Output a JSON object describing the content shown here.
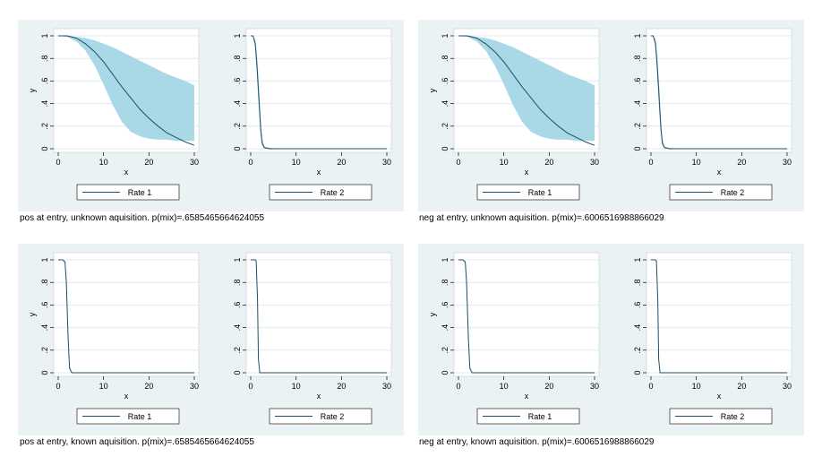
{
  "colors": {
    "panel_bg": "#eaf2f3",
    "plot_bg": "#ffffff",
    "band": "#a9d8e6",
    "line": "#1e4f66",
    "grid": "#e1ebee",
    "frame": "#bcc8cc"
  },
  "chart_data": [
    {
      "caption": "pos at entry, unknown aquisition.  p(mix)=.6585465664624055",
      "subplots": [
        {
          "type": "area",
          "xlabel": "x",
          "ylabel": "y",
          "xlim": [
            0,
            30
          ],
          "ylim": [
            0,
            1
          ],
          "xticks": [
            "0",
            "10",
            "20",
            "30"
          ],
          "yticks": [
            "0",
            ".2",
            ".4",
            ".6",
            ".8",
            "1"
          ],
          "legend": [
            "Rate 1"
          ],
          "x": [
            0,
            2,
            4,
            6,
            8,
            10,
            12,
            14,
            16,
            18,
            20,
            22,
            24,
            26,
            28,
            30
          ],
          "band_lower": [
            1,
            0.99,
            0.95,
            0.87,
            0.74,
            0.57,
            0.39,
            0.24,
            0.15,
            0.11,
            0.09,
            0.08,
            0.08,
            0.07,
            0.07,
            0.07
          ],
          "band_upper": [
            1,
            1,
            0.99,
            0.98,
            0.96,
            0.93,
            0.9,
            0.86,
            0.82,
            0.78,
            0.74,
            0.7,
            0.66,
            0.63,
            0.6,
            0.56
          ],
          "center": [
            1,
            1,
            0.98,
            0.93,
            0.86,
            0.77,
            0.66,
            0.55,
            0.45,
            0.35,
            0.27,
            0.2,
            0.14,
            0.1,
            0.06,
            0.03
          ]
        },
        {
          "type": "area",
          "xlabel": "x",
          "ylabel": "",
          "xlim": [
            0,
            30
          ],
          "ylim": [
            0,
            1
          ],
          "xticks": [
            "0",
            "10",
            "20",
            "30"
          ],
          "yticks": [
            "0",
            ".2",
            ".4",
            ".6",
            ".8",
            "1"
          ],
          "legend": [
            "Rate 2"
          ],
          "x": [
            0,
            0.5,
            1,
            1.4,
            1.8,
            2.2,
            2.5,
            3,
            4,
            6,
            10,
            30
          ],
          "band_lower": [
            1,
            1,
            0.88,
            0.62,
            0.33,
            0.12,
            0.03,
            0,
            0,
            0,
            0,
            0
          ],
          "band_upper": [
            1,
            1,
            0.97,
            0.83,
            0.58,
            0.28,
            0.1,
            0.02,
            0.01,
            0,
            0,
            0
          ],
          "center": [
            1,
            1,
            0.93,
            0.72,
            0.45,
            0.18,
            0.05,
            0.01,
            0,
            0,
            0,
            0
          ]
        }
      ]
    },
    {
      "caption": "neg at entry, unknown aquisition.  p(mix)=.6006516988866029",
      "subplots": [
        {
          "type": "area",
          "xlabel": "x",
          "ylabel": "y",
          "xlim": [
            0,
            30
          ],
          "ylim": [
            0,
            1
          ],
          "xticks": [
            "0",
            "10",
            "20",
            "30"
          ],
          "yticks": [
            "0",
            ".2",
            ".4",
            ".6",
            ".8",
            "1"
          ],
          "legend": [
            "Rate 1"
          ],
          "x": [
            0,
            2,
            4,
            6,
            8,
            10,
            12,
            14,
            16,
            18,
            20,
            22,
            24,
            26,
            28,
            30
          ],
          "band_lower": [
            1,
            0.99,
            0.95,
            0.87,
            0.74,
            0.57,
            0.39,
            0.24,
            0.15,
            0.11,
            0.09,
            0.08,
            0.08,
            0.07,
            0.07,
            0.07
          ],
          "band_upper": [
            1,
            1,
            0.99,
            0.98,
            0.96,
            0.93,
            0.9,
            0.86,
            0.82,
            0.78,
            0.74,
            0.7,
            0.66,
            0.63,
            0.6,
            0.56
          ],
          "center": [
            1,
            1,
            0.98,
            0.93,
            0.86,
            0.77,
            0.66,
            0.55,
            0.45,
            0.35,
            0.27,
            0.2,
            0.14,
            0.1,
            0.06,
            0.03
          ]
        },
        {
          "type": "area",
          "xlabel": "x",
          "ylabel": "",
          "xlim": [
            0,
            30
          ],
          "ylim": [
            0,
            1
          ],
          "xticks": [
            "0",
            "10",
            "20",
            "30"
          ],
          "yticks": [
            "0",
            ".2",
            ".4",
            ".6",
            ".8",
            "1"
          ],
          "legend": [
            "Rate 2"
          ],
          "x": [
            0,
            0.5,
            1,
            1.4,
            1.8,
            2.2,
            2.5,
            3,
            4,
            6,
            10,
            30
          ],
          "band_lower": [
            1,
            1,
            0.88,
            0.62,
            0.33,
            0.12,
            0.03,
            0,
            0,
            0,
            0,
            0
          ],
          "band_upper": [
            1,
            1,
            0.97,
            0.83,
            0.58,
            0.28,
            0.1,
            0.02,
            0.01,
            0,
            0,
            0
          ],
          "center": [
            1,
            1,
            0.93,
            0.72,
            0.45,
            0.18,
            0.05,
            0.01,
            0,
            0,
            0,
            0
          ]
        }
      ]
    },
    {
      "caption": "pos at entry, known aquisition.  p(mix)=.6585465664624055",
      "subplots": [
        {
          "type": "area",
          "xlabel": "x",
          "ylabel": "y",
          "xlim": [
            0,
            30
          ],
          "ylim": [
            0,
            1
          ],
          "xticks": [
            "0",
            "10",
            "20",
            "30"
          ],
          "yticks": [
            "0",
            ".2",
            ".4",
            ".6",
            ".8",
            "1"
          ],
          "legend": [
            "Rate 1"
          ],
          "x": [
            0,
            1,
            1.5,
            1.8,
            2.2,
            2.5,
            3,
            30
          ],
          "band_lower": [
            1,
            1,
            0.96,
            0.72,
            0.25,
            0.03,
            0,
            0
          ],
          "band_upper": [
            1,
            1,
            0.99,
            0.85,
            0.35,
            0.06,
            0,
            0
          ],
          "center": [
            1,
            1,
            0.98,
            0.8,
            0.3,
            0.04,
            0,
            0
          ]
        },
        {
          "type": "area",
          "xlabel": "x",
          "ylabel": "",
          "xlim": [
            0,
            30
          ],
          "ylim": [
            0,
            1
          ],
          "xticks": [
            "0",
            "10",
            "20",
            "30"
          ],
          "yticks": [
            "0",
            ".2",
            ".4",
            ".6",
            ".8",
            "1"
          ],
          "legend": [
            "Rate 2"
          ],
          "x": [
            0,
            1,
            1.2,
            1.5,
            1.7,
            2,
            30
          ],
          "band_lower": [
            1,
            1,
            0.98,
            0.6,
            0.1,
            0,
            0
          ],
          "band_upper": [
            1,
            1,
            0.99,
            0.7,
            0.15,
            0,
            0
          ],
          "center": [
            1,
            1,
            0.99,
            0.65,
            0.12,
            0,
            0
          ]
        }
      ]
    },
    {
      "caption": "neg at entry, known aquisition.  p(mix)=.6006516988866029",
      "subplots": [
        {
          "type": "area",
          "xlabel": "x",
          "ylabel": "y",
          "xlim": [
            0,
            30
          ],
          "ylim": [
            0,
            1
          ],
          "xticks": [
            "0",
            "10",
            "20",
            "30"
          ],
          "yticks": [
            "0",
            ".2",
            ".4",
            ".6",
            ".8",
            "1"
          ],
          "legend": [
            "Rate 1"
          ],
          "x": [
            0,
            1,
            1.5,
            1.8,
            2.2,
            2.5,
            3,
            30
          ],
          "band_lower": [
            1,
            1,
            0.96,
            0.72,
            0.25,
            0.03,
            0,
            0
          ],
          "band_upper": [
            1,
            1,
            0.99,
            0.85,
            0.35,
            0.06,
            0,
            0
          ],
          "center": [
            1,
            1,
            0.98,
            0.8,
            0.3,
            0.04,
            0,
            0
          ]
        },
        {
          "type": "area",
          "xlabel": "x",
          "ylabel": "",
          "xlim": [
            0,
            30
          ],
          "ylim": [
            0,
            1
          ],
          "xticks": [
            "0",
            "10",
            "20",
            "30"
          ],
          "yticks": [
            "0",
            ".2",
            ".4",
            ".6",
            ".8",
            "1"
          ],
          "legend": [
            "Rate 2"
          ],
          "x": [
            0,
            1,
            1.2,
            1.5,
            1.7,
            2,
            30
          ],
          "band_lower": [
            1,
            1,
            0.98,
            0.6,
            0.1,
            0,
            0
          ],
          "band_upper": [
            1,
            1,
            0.99,
            0.7,
            0.15,
            0,
            0
          ],
          "center": [
            1,
            1,
            0.99,
            0.65,
            0.12,
            0,
            0
          ]
        }
      ]
    }
  ]
}
